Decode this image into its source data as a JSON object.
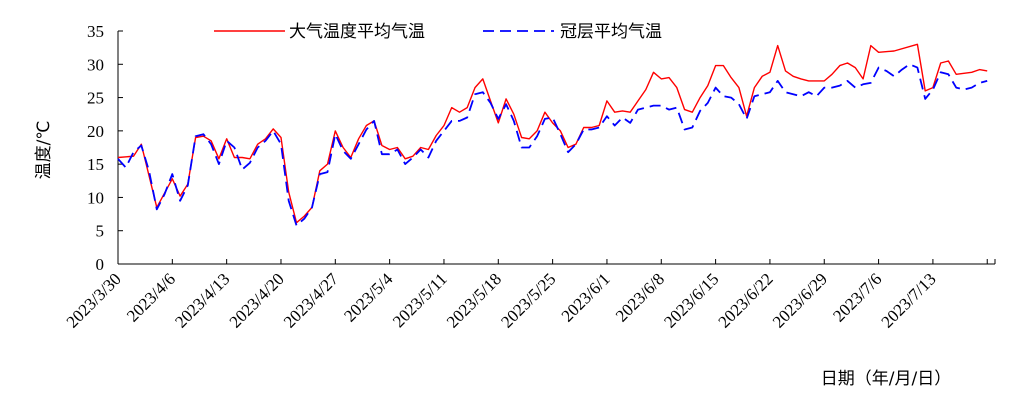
{
  "chart_data": {
    "type": "line",
    "ylabel": "温度/℃",
    "xlabel": "日期（年/月/日）",
    "ylim": [
      0,
      35
    ],
    "yticks": [
      0,
      5,
      10,
      15,
      20,
      25,
      30,
      35
    ],
    "xlim": [
      "2023/3/30",
      "2023/7/21"
    ],
    "xtick_labels": [
      "2023/3/30",
      "2023/4/6",
      "2023/4/13",
      "2023/4/20",
      "2023/4/27",
      "2023/5/4",
      "2023/5/11",
      "2023/5/18",
      "2023/5/25",
      "2023/6/1",
      "2023/6/8",
      "2023/6/15",
      "2023/6/22",
      "2023/6/29",
      "2023/7/6",
      "2023/7/13"
    ],
    "grid": false,
    "legend_position": "top",
    "series": [
      {
        "name": "大气温度平均气温",
        "color": "#ff0000",
        "style": "solid",
        "points": [
          [
            "2023/3/30",
            16.0
          ],
          [
            "2023/4/1",
            16.2
          ],
          [
            "2023/4/2",
            18.0
          ],
          [
            "2023/4/4",
            8.5
          ],
          [
            "2023/4/6",
            12.8
          ],
          [
            "2023/4/7",
            10.2
          ],
          [
            "2023/4/8",
            12.0
          ],
          [
            "2023/4/9",
            19.0
          ],
          [
            "2023/4/10",
            19.2
          ],
          [
            "2023/4/11",
            18.5
          ],
          [
            "2023/4/12",
            15.8
          ],
          [
            "2023/4/13",
            18.8
          ],
          [
            "2023/4/14",
            16.0
          ],
          [
            "2023/4/15",
            16.0
          ],
          [
            "2023/4/16",
            15.8
          ],
          [
            "2023/4/17",
            18.0
          ],
          [
            "2023/4/18",
            18.8
          ],
          [
            "2023/4/19",
            20.3
          ],
          [
            "2023/4/20",
            19.0
          ],
          [
            "2023/4/21",
            10.8
          ],
          [
            "2023/4/22",
            6.2
          ],
          [
            "2023/4/23",
            7.2
          ],
          [
            "2023/4/24",
            8.5
          ],
          [
            "2023/4/25",
            14.0
          ],
          [
            "2023/4/26",
            15.0
          ],
          [
            "2023/4/27",
            20.0
          ],
          [
            "2023/4/28",
            17.5
          ],
          [
            "2023/4/29",
            16.0
          ],
          [
            "2023/4/30",
            18.8
          ],
          [
            "2023/5/1",
            20.8
          ],
          [
            "2023/5/2",
            21.5
          ],
          [
            "2023/5/3",
            17.8
          ],
          [
            "2023/5/4",
            17.2
          ],
          [
            "2023/5/5",
            17.5
          ],
          [
            "2023/5/6",
            15.8
          ],
          [
            "2023/5/7",
            16.2
          ],
          [
            "2023/5/8",
            17.5
          ],
          [
            "2023/5/9",
            17.2
          ],
          [
            "2023/5/10",
            19.3
          ],
          [
            "2023/5/11",
            20.8
          ],
          [
            "2023/5/12",
            23.5
          ],
          [
            "2023/5/13",
            22.8
          ],
          [
            "2023/5/14",
            23.5
          ],
          [
            "2023/5/15",
            26.5
          ],
          [
            "2023/5/16",
            27.8
          ],
          [
            "2023/5/17",
            24.5
          ],
          [
            "2023/5/18",
            21.2
          ],
          [
            "2023/5/19",
            24.8
          ],
          [
            "2023/5/20",
            22.5
          ],
          [
            "2023/5/21",
            19.0
          ],
          [
            "2023/5/22",
            18.8
          ],
          [
            "2023/5/23",
            20.0
          ],
          [
            "2023/5/24",
            22.8
          ],
          [
            "2023/5/25",
            21.2
          ],
          [
            "2023/5/26",
            20.0
          ],
          [
            "2023/5/27",
            17.5
          ],
          [
            "2023/5/28",
            18.0
          ],
          [
            "2023/5/29",
            20.5
          ],
          [
            "2023/5/30",
            20.5
          ],
          [
            "2023/5/31",
            20.8
          ],
          [
            "2023/6/1",
            24.5
          ],
          [
            "2023/6/2",
            22.8
          ],
          [
            "2023/6/3",
            23.0
          ],
          [
            "2023/6/4",
            22.8
          ],
          [
            "2023/6/5",
            24.5
          ],
          [
            "2023/6/6",
            26.2
          ],
          [
            "2023/6/7",
            28.8
          ],
          [
            "2023/6/8",
            27.8
          ],
          [
            "2023/6/9",
            28.0
          ],
          [
            "2023/6/10",
            26.5
          ],
          [
            "2023/6/11",
            23.2
          ],
          [
            "2023/6/12",
            22.8
          ],
          [
            "2023/6/13",
            25.0
          ],
          [
            "2023/6/14",
            26.8
          ],
          [
            "2023/6/15",
            29.8
          ],
          [
            "2023/6/16",
            29.8
          ],
          [
            "2023/6/17",
            28.0
          ],
          [
            "2023/6/18",
            26.5
          ],
          [
            "2023/6/19",
            22.2
          ],
          [
            "2023/6/20",
            26.5
          ],
          [
            "2023/6/21",
            28.2
          ],
          [
            "2023/6/22",
            28.8
          ],
          [
            "2023/6/23",
            32.8
          ],
          [
            "2023/6/24",
            29.0
          ],
          [
            "2023/6/25",
            28.2
          ],
          [
            "2023/6/26",
            27.8
          ],
          [
            "2023/6/27",
            27.5
          ],
          [
            "2023/6/29",
            27.5
          ],
          [
            "2023/6/30",
            28.5
          ],
          [
            "2023/7/1",
            29.8
          ],
          [
            "2023/7/2",
            30.2
          ],
          [
            "2023/7/3",
            29.5
          ],
          [
            "2023/7/4",
            27.8
          ],
          [
            "2023/7/5",
            32.8
          ],
          [
            "2023/7/6",
            31.8
          ],
          [
            "2023/7/8",
            32.0
          ],
          [
            "2023/7/11",
            33.0
          ],
          [
            "2023/7/12",
            26.0
          ],
          [
            "2023/7/13",
            26.5
          ],
          [
            "2023/7/14",
            30.2
          ],
          [
            "2023/7/15",
            30.5
          ],
          [
            "2023/7/16",
            28.5
          ],
          [
            "2023/7/18",
            28.8
          ],
          [
            "2023/7/19",
            29.2
          ],
          [
            "2023/7/20",
            29.0
          ]
        ]
      },
      {
        "name": "冠层平均气温",
        "color": "#0000ff",
        "style": "dashed",
        "points": [
          [
            "2023/3/30",
            15.8
          ],
          [
            "2023/3/31",
            14.5
          ],
          [
            "2023/4/1",
            16.8
          ],
          [
            "2023/4/2",
            17.8
          ],
          [
            "2023/4/3",
            14.0
          ],
          [
            "2023/4/4",
            8.2
          ],
          [
            "2023/4/5",
            10.5
          ],
          [
            "2023/4/6",
            13.5
          ],
          [
            "2023/4/7",
            9.5
          ],
          [
            "2023/4/8",
            11.8
          ],
          [
            "2023/4/9",
            19.2
          ],
          [
            "2023/4/10",
            19.5
          ],
          [
            "2023/4/11",
            18.0
          ],
          [
            "2023/4/12",
            15.0
          ],
          [
            "2023/4/13",
            18.5
          ],
          [
            "2023/4/14",
            17.5
          ],
          [
            "2023/4/15",
            14.2
          ],
          [
            "2023/4/16",
            15.2
          ],
          [
            "2023/4/17",
            17.5
          ],
          [
            "2023/4/18",
            18.5
          ],
          [
            "2023/4/19",
            20.0
          ],
          [
            "2023/4/20",
            18.0
          ],
          [
            "2023/4/21",
            9.5
          ],
          [
            "2023/4/22",
            5.8
          ],
          [
            "2023/4/23",
            6.8
          ],
          [
            "2023/4/24",
            8.5
          ],
          [
            "2023/4/25",
            13.5
          ],
          [
            "2023/4/26",
            13.8
          ],
          [
            "2023/4/27",
            19.5
          ],
          [
            "2023/4/28",
            17.0
          ],
          [
            "2023/4/29",
            15.8
          ],
          [
            "2023/4/30",
            18.0
          ],
          [
            "2023/5/1",
            20.2
          ],
          [
            "2023/5/2",
            21.5
          ],
          [
            "2023/5/3",
            16.5
          ],
          [
            "2023/5/4",
            16.5
          ],
          [
            "2023/5/5",
            17.2
          ],
          [
            "2023/5/6",
            15.0
          ],
          [
            "2023/5/7",
            16.0
          ],
          [
            "2023/5/8",
            17.2
          ],
          [
            "2023/5/9",
            16.0
          ],
          [
            "2023/5/10",
            18.5
          ],
          [
            "2023/5/11",
            20.0
          ],
          [
            "2023/5/12",
            21.5
          ],
          [
            "2023/5/13",
            21.5
          ],
          [
            "2023/5/14",
            22.0
          ],
          [
            "2023/5/15",
            25.5
          ],
          [
            "2023/5/16",
            25.8
          ],
          [
            "2023/5/17",
            24.2
          ],
          [
            "2023/5/18",
            21.8
          ],
          [
            "2023/5/19",
            24.0
          ],
          [
            "2023/5/20",
            21.5
          ],
          [
            "2023/5/21",
            17.5
          ],
          [
            "2023/5/22",
            17.5
          ],
          [
            "2023/5/23",
            19.2
          ],
          [
            "2023/5/24",
            21.8
          ],
          [
            "2023/5/25",
            22.0
          ],
          [
            "2023/5/26",
            19.5
          ],
          [
            "2023/5/27",
            16.8
          ],
          [
            "2023/5/28",
            18.0
          ],
          [
            "2023/5/29",
            20.2
          ],
          [
            "2023/5/30",
            20.2
          ],
          [
            "2023/5/31",
            20.5
          ],
          [
            "2023/6/1",
            22.2
          ],
          [
            "2023/6/2",
            20.8
          ],
          [
            "2023/6/3",
            22.0
          ],
          [
            "2023/6/4",
            21.2
          ],
          [
            "2023/6/5",
            23.2
          ],
          [
            "2023/6/6",
            23.5
          ],
          [
            "2023/6/7",
            23.8
          ],
          [
            "2023/6/8",
            23.8
          ],
          [
            "2023/6/9",
            23.2
          ],
          [
            "2023/6/10",
            23.5
          ],
          [
            "2023/6/11",
            20.2
          ],
          [
            "2023/6/12",
            20.5
          ],
          [
            "2023/6/13",
            23.0
          ],
          [
            "2023/6/14",
            24.2
          ],
          [
            "2023/6/15",
            26.5
          ],
          [
            "2023/6/16",
            25.2
          ],
          [
            "2023/6/17",
            25.0
          ],
          [
            "2023/6/18",
            24.0
          ],
          [
            "2023/6/19",
            21.8
          ],
          [
            "2023/6/20",
            25.2
          ],
          [
            "2023/6/21",
            25.5
          ],
          [
            "2023/6/22",
            25.8
          ],
          [
            "2023/6/23",
            27.5
          ],
          [
            "2023/6/24",
            25.8
          ],
          [
            "2023/6/25",
            25.5
          ],
          [
            "2023/6/26",
            25.2
          ],
          [
            "2023/6/27",
            25.8
          ],
          [
            "2023/6/28",
            25.2
          ],
          [
            "2023/6/29",
            26.5
          ],
          [
            "2023/6/30",
            26.5
          ],
          [
            "2023/7/1",
            26.8
          ],
          [
            "2023/7/2",
            27.5
          ],
          [
            "2023/7/3",
            26.5
          ],
          [
            "2023/7/4",
            27.0
          ],
          [
            "2023/7/5",
            27.2
          ],
          [
            "2023/7/6",
            29.5
          ],
          [
            "2023/7/7",
            29.0
          ],
          [
            "2023/7/8",
            28.2
          ],
          [
            "2023/7/9",
            29.2
          ],
          [
            "2023/7/10",
            30.0
          ],
          [
            "2023/7/11",
            29.5
          ],
          [
            "2023/7/12",
            24.8
          ],
          [
            "2023/7/13",
            26.2
          ],
          [
            "2023/7/14",
            28.8
          ],
          [
            "2023/7/15",
            28.5
          ],
          [
            "2023/7/16",
            26.5
          ],
          [
            "2023/7/17",
            26.2
          ],
          [
            "2023/7/18",
            26.5
          ],
          [
            "2023/7/19",
            27.2
          ],
          [
            "2023/7/20",
            27.5
          ]
        ]
      }
    ]
  }
}
